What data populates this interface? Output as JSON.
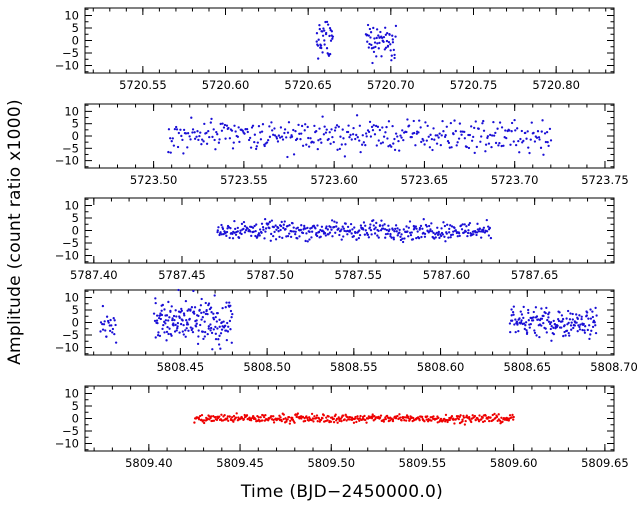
{
  "figure": {
    "ylabel": "Amplitude (count ratio x1000)",
    "xlabel": "Time (BJD−2450000.0)"
  },
  "chart_data": [
    {
      "type": "scatter",
      "panel": 1,
      "color": "#1a0fd6",
      "xlim": [
        5720.515,
        5720.835
      ],
      "ylim": [
        -13,
        13
      ],
      "xticks": [
        5720.55,
        5720.6,
        5720.65,
        5720.7,
        5720.75,
        5720.8
      ],
      "xtick_labels": [
        "5720.55",
        "5720.60",
        "5720.65",
        "5720.70",
        "5720.75",
        "5720.80"
      ],
      "yticks": [
        10,
        5,
        0,
        -5,
        -10
      ],
      "ytick_labels": [
        "10",
        "5",
        "0",
        "−5",
        "−10"
      ],
      "segments": [
        {
          "x_start": 5720.655,
          "x_end": 5720.665,
          "n": 38,
          "amp": 4
        },
        {
          "x_start": 5720.685,
          "x_end": 5720.703,
          "n": 60,
          "amp": 3.5
        }
      ]
    },
    {
      "type": "scatter",
      "panel": 2,
      "color": "#1a0fd6",
      "xlim": [
        5723.462,
        5723.755
      ],
      "ylim": [
        -13,
        13
      ],
      "xticks": [
        5723.5,
        5723.55,
        5723.6,
        5723.65,
        5723.7,
        5723.75
      ],
      "xtick_labels": [
        "5723.50",
        "5723.55",
        "5723.60",
        "5723.65",
        "5723.70",
        "5723.75"
      ],
      "yticks": [
        10,
        5,
        0,
        -5,
        -10
      ],
      "ytick_labels": [
        "10",
        "5",
        "0",
        "−5",
        "−10"
      ],
      "segments": [
        {
          "x_start": 5723.508,
          "x_end": 5723.72,
          "n": 380,
          "amp": 3.5
        }
      ]
    },
    {
      "type": "scatter",
      "panel": 3,
      "color": "#1a0fd6",
      "xlim": [
        5787.395,
        5787.695
      ],
      "ylim": [
        -13,
        13
      ],
      "xticks": [
        5787.4,
        5787.45,
        5787.5,
        5787.55,
        5787.6,
        5787.65
      ],
      "xtick_labels": [
        "5787.40",
        "5787.45",
        "5787.50",
        "5787.55",
        "5787.60",
        "5787.65"
      ],
      "yticks": [
        10,
        5,
        0,
        -5,
        -10
      ],
      "ytick_labels": [
        "10",
        "5",
        "0",
        "−5",
        "−10"
      ],
      "segments": [
        {
          "x_start": 5787.47,
          "x_end": 5787.625,
          "n": 420,
          "amp": 2
        }
      ]
    },
    {
      "type": "scatter",
      "panel": 4,
      "color": "#1a0fd6",
      "xlim": [
        5808.395,
        5808.7
      ],
      "ylim": [
        -13,
        13
      ],
      "xticks": [
        5808.45,
        5808.5,
        5808.55,
        5808.6,
        5808.65,
        5808.7
      ],
      "xtick_labels": [
        "5808.45",
        "5808.50",
        "5808.55",
        "5808.60",
        "5808.65",
        "5808.70"
      ],
      "yticks": [
        10,
        5,
        0,
        -5,
        -10
      ],
      "ytick_labels": [
        "10",
        "5",
        "0",
        "−5",
        "−10"
      ],
      "segments": [
        {
          "x_start": 5808.404,
          "x_end": 5808.413,
          "n": 24,
          "amp": 4
        },
        {
          "x_start": 5808.435,
          "x_end": 5808.48,
          "n": 190,
          "amp": 5
        },
        {
          "x_start": 5808.64,
          "x_end": 5808.69,
          "n": 170,
          "amp": 3
        }
      ]
    },
    {
      "type": "scatter",
      "panel": 5,
      "color": "#ee0000",
      "xlim": [
        5809.365,
        5809.655
      ],
      "ylim": [
        -13,
        13
      ],
      "xticks": [
        5809.4,
        5809.45,
        5809.5,
        5809.55,
        5809.6,
        5809.65
      ],
      "xtick_labels": [
        "5809.40",
        "5809.45",
        "5809.50",
        "5809.55",
        "5809.60",
        "5809.65"
      ],
      "yticks": [
        10,
        5,
        0,
        -5,
        -10
      ],
      "ytick_labels": [
        "10",
        "5",
        "0",
        "−5",
        "−10"
      ],
      "segments": [
        {
          "x_start": 5809.425,
          "x_end": 5809.6,
          "n": 460,
          "amp": 0.9
        }
      ]
    }
  ]
}
